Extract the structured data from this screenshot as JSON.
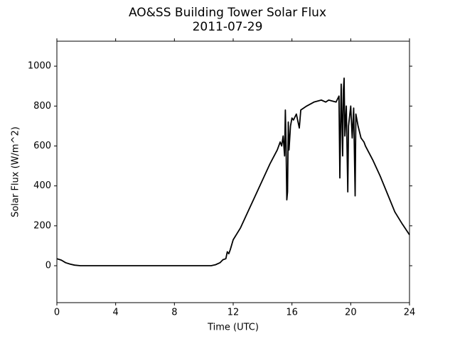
{
  "chart_data": {
    "type": "line",
    "title": "AO&SS Building Tower Solar Flux",
    "subtitle": "2011-07-29",
    "x_label": "Time (UTC)",
    "y_label": "Solar Flux (W/m^2)",
    "xlim": [
      0,
      24
    ],
    "xticks": [
      0,
      4,
      8,
      12,
      16,
      20,
      24
    ],
    "ylim": [
      -185,
      1125
    ],
    "yticks": [
      0,
      200,
      400,
      600,
      800,
      1000
    ],
    "grid": false,
    "series": [
      {
        "color": "#000000",
        "x": [
          0,
          0.3,
          0.6,
          0.9,
          1.2,
          1.6,
          2,
          4,
          8,
          10.5,
          10.8,
          11.1,
          11.3,
          11.5,
          11.6,
          11.7,
          11.8,
          12,
          12.5,
          13,
          13.5,
          14,
          14.5,
          15,
          15.2,
          15.3,
          15.4,
          15.5,
          15.55,
          15.6,
          15.65,
          15.7,
          15.75,
          15.8,
          15.9,
          16,
          16.1,
          16.3,
          16.5,
          16.6,
          17,
          17.5,
          18,
          18.3,
          18.5,
          19,
          19.2,
          19.26,
          19.35,
          19.45,
          19.5,
          19.55,
          19.6,
          19.7,
          19.8,
          19.85,
          20,
          20.1,
          20.2,
          20.3,
          20.35,
          20.5,
          20.7,
          20.9,
          21,
          21.5,
          22,
          22.5,
          23,
          23.5,
          24
        ],
        "values": [
          35,
          28,
          15,
          8,
          3,
          0,
          0,
          0,
          0,
          0,
          5,
          15,
          30,
          35,
          70,
          60,
          80,
          130,
          190,
          270,
          350,
          430,
          510,
          580,
          620,
          600,
          650,
          550,
          780,
          600,
          330,
          370,
          720,
          580,
          700,
          740,
          730,
          760,
          690,
          780,
          800,
          820,
          830,
          820,
          830,
          820,
          850,
          440,
          910,
          550,
          880,
          940,
          650,
          800,
          370,
          700,
          800,
          640,
          790,
          350,
          760,
          700,
          640,
          620,
          600,
          530,
          450,
          360,
          270,
          210,
          155
        ]
      }
    ]
  }
}
